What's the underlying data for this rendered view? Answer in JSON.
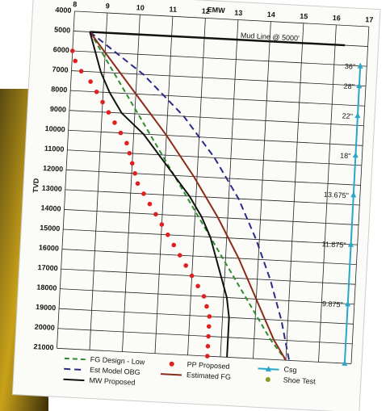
{
  "chart_data": {
    "type": "line",
    "x_label": "EMW",
    "y_label": "TVD",
    "xlim": [
      8,
      17
    ],
    "xticks": [
      8,
      9,
      10,
      11,
      12,
      13,
      14,
      15,
      16,
      17
    ],
    "ylim": [
      4000,
      21000
    ],
    "yticks": [
      4000,
      5000,
      6000,
      7000,
      8000,
      9000,
      10000,
      11000,
      12000,
      13000,
      14000,
      15000,
      16000,
      17000,
      18000,
      19000,
      20000,
      21000
    ],
    "y_inverted": true,
    "grid": true,
    "annotation": {
      "text": "Mud Line @ 5000'",
      "x": 14,
      "y": 5000
    },
    "series": [
      {
        "name": "FG Design - Low",
        "color": "#2e8b2e",
        "dash": "6,4",
        "marker": "none",
        "x": [
          8.5,
          9.7,
          10.5,
          11.3,
          12.1,
          12.9,
          13.7,
          14.5,
          15
        ],
        "y": [
          5000,
          8000,
          10000,
          12000,
          14000,
          16000,
          18000,
          20000,
          21000
        ]
      },
      {
        "name": "PP Proposed",
        "color": "#e02020",
        "dash": "",
        "marker": "dot",
        "x": [
          8.0,
          8.1,
          8.3,
          8.6,
          8.8,
          9.0,
          9.2,
          9.4,
          9.6,
          9.8,
          9.9,
          10.0,
          10.1,
          10.2,
          10.4,
          10.6,
          10.8,
          11.0,
          11.2,
          11.4,
          11.6,
          11.8,
          12.0,
          12.2,
          12.4,
          12.5,
          12.6,
          12.6,
          12.6,
          12.6,
          12.6
        ],
        "y": [
          6000,
          6500,
          7000,
          7500,
          8000,
          8500,
          9000,
          9500,
          10000,
          10500,
          11000,
          11500,
          12000,
          12500,
          13000,
          13500,
          14000,
          14500,
          15000,
          15500,
          16000,
          16500,
          17000,
          17500,
          18000,
          18500,
          19000,
          19500,
          20000,
          20500,
          21000
        ]
      },
      {
        "name": "Csg",
        "color": "#2aa6c8",
        "dash": "",
        "marker": "triangle",
        "x": [
          16.8,
          16.8,
          16.8,
          16.8,
          16.8,
          16.8,
          16.8,
          16.8
        ],
        "y": [
          6000,
          7000,
          8500,
          10500,
          12500,
          15000,
          18000,
          21000
        ],
        "labels": [
          "36\"",
          "28\"",
          "22\"",
          "18\"",
          "13.675\"",
          "11.875\"",
          "9.875\"",
          null
        ]
      },
      {
        "name": "Est Model OBG",
        "color": "#2a2a8a",
        "dash": "8,5",
        "marker": "none",
        "x": [
          8.5,
          10.2,
          11.5,
          12.5,
          13.3,
          13.9,
          14.4,
          14.8,
          15.1
        ],
        "y": [
          5000,
          7000,
          9000,
          11000,
          13000,
          15000,
          17000,
          19000,
          21000
        ]
      },
      {
        "name": "Estimated FG",
        "color": "#8b2a1a",
        "dash": "",
        "marker": "none",
        "x": [
          8.5,
          10.0,
          11.0,
          11.9,
          12.7,
          13.4,
          14.0,
          14.6,
          15.0
        ],
        "y": [
          5000,
          8000,
          10000,
          12000,
          14000,
          16000,
          18000,
          20000,
          21000
        ]
      },
      {
        "name": "Shoe Test",
        "color": "#8a9a20",
        "dash": "",
        "marker": "dot",
        "x": [],
        "y": []
      },
      {
        "name": "MW Proposed",
        "color": "#111111",
        "dash": "",
        "marker": "none",
        "x": [
          8.5,
          8.7,
          8.9,
          9.2,
          9.6,
          10.3,
          10.8,
          11.3,
          11.8,
          12.2,
          12.5,
          12.7,
          12.9,
          13.1,
          13.2,
          13.2
        ],
        "y": [
          5000,
          6000,
          7000,
          8000,
          9000,
          10000,
          11000,
          12000,
          13000,
          14000,
          15000,
          16000,
          17000,
          18000,
          19000,
          21000
        ]
      }
    ]
  }
}
